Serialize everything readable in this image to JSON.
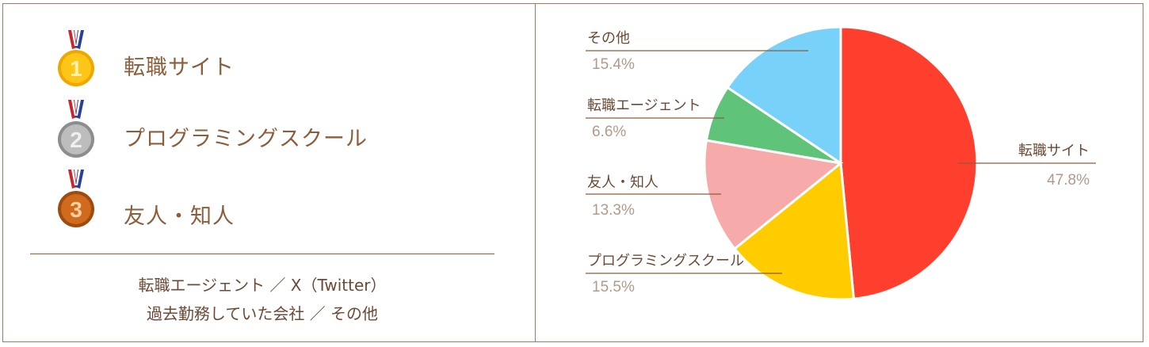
{
  "ranking": [
    {
      "rank_icon": "medal-gold-1",
      "medal_text": "1",
      "label": "転職サイト"
    },
    {
      "rank_icon": "medal-silver-2",
      "medal_text": "2",
      "label": "プログラミングスクール"
    },
    {
      "rank_icon": "medal-bronze-3",
      "medal_text": "3",
      "label": "友人・知人"
    }
  ],
  "others_lines": [
    "転職エージェント ／ X（Twitter）",
    "過去勤務していた会社 ／ その他"
  ],
  "colors": {
    "border": "#a27a5e",
    "text": "#8b5e3c",
    "percent": "#b09a8a"
  },
  "chart_data": {
    "type": "pie",
    "slices": [
      {
        "label": "転職サイト",
        "value": 47.8,
        "display": "47.8%",
        "color": "#ff3f2e"
      },
      {
        "label": "プログラミングスクール",
        "value": 15.5,
        "display": "15.5%",
        "color": "#ffcc00"
      },
      {
        "label": "友人・知人",
        "value": 13.3,
        "display": "13.3%",
        "color": "#f7aaaa"
      },
      {
        "label": "転職エージェント",
        "value": 6.6,
        "display": "6.6%",
        "color": "#5fc47a"
      },
      {
        "label": "その他",
        "value": 15.4,
        "display": "15.4%",
        "color": "#78d1f8"
      }
    ],
    "start": "12 o'clock",
    "direction": "clockwise",
    "legend": "callout labels"
  }
}
